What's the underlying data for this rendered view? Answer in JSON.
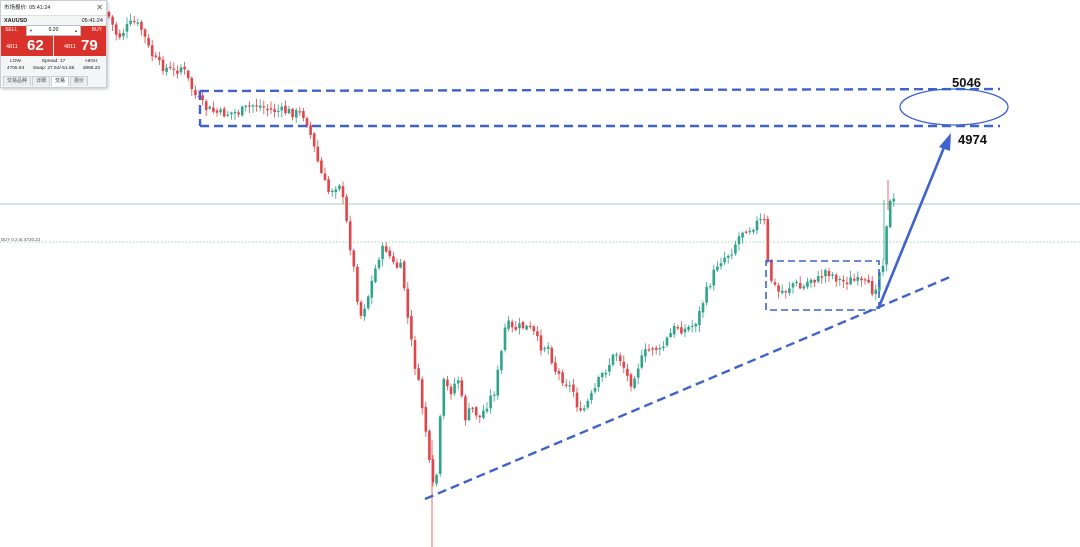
{
  "widget": {
    "title": "市场报价: 05:41:24",
    "symbol": "XAUUSD",
    "time": "05:41:24",
    "sell_label": "SELL",
    "buy_label": "BUY",
    "lot": "0.20",
    "sell_small": "4811",
    "sell_big": "62",
    "buy_small": "4811",
    "buy_big": "79",
    "low_label": "LOW",
    "low_value": "4705.94",
    "spread_label": "Spread: 17",
    "swap_label": "Swap: 27.64/-51.56",
    "high_label": "HIGH",
    "high_value": "4858.23",
    "tabs": [
      "交易品种",
      "详细",
      "交易",
      "报价"
    ],
    "active_tab": 2,
    "close_icon": "close-icon"
  },
  "buy_line_label": "BUY 0.2 at 4730.22",
  "colors": {
    "bull": "#2ea58a",
    "bear": "#e0454a",
    "annotation": "#3f63cc",
    "price_line": "#7ec4a2",
    "sell_bg": "#d9322b"
  },
  "chart_data": {
    "type": "candlestick",
    "annotations": {
      "target_high_label": "5046",
      "target_low_label": "4974"
    }
  }
}
